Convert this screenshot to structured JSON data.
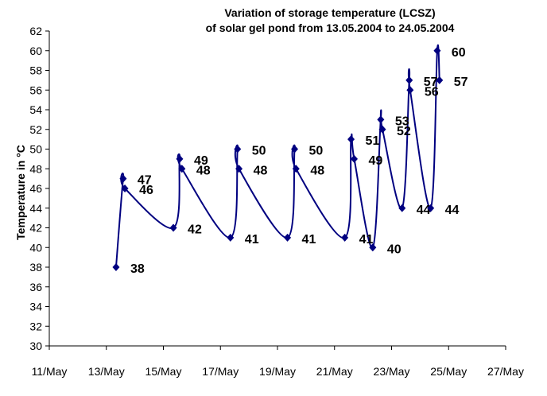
{
  "chart_data": {
    "type": "line",
    "title": [
      "Variation of storage temperature (LCSZ)",
      "of solar gel pond from 13.05.2004 to 24.05.2004"
    ],
    "xlabel": "",
    "ylabel": "Temperature in °C",
    "xlim": [
      11,
      27
    ],
    "ylim": [
      30,
      62
    ],
    "x_tick_labels": [
      "11/May",
      "13/May",
      "15/May",
      "17/May",
      "19/May",
      "21/May",
      "23/May",
      "25/May",
      "27/May"
    ],
    "x_tick_values": [
      11,
      13,
      15,
      17,
      19,
      21,
      23,
      25,
      27
    ],
    "y_ticks": [
      30,
      32,
      34,
      36,
      38,
      40,
      42,
      44,
      46,
      48,
      50,
      52,
      54,
      56,
      58,
      60,
      62
    ],
    "grid": false,
    "series": [
      {
        "name": "Storage temperature",
        "color": "#000080",
        "x_day_of_may": [
          13.34,
          13.59,
          13.65,
          15.35,
          15.57,
          15.65,
          17.35,
          17.6,
          17.65,
          19.35,
          19.6,
          19.65,
          21.36,
          21.58,
          21.69,
          22.34,
          22.62,
          22.68,
          23.37,
          23.62,
          23.65,
          24.37,
          24.6,
          24.68
        ],
        "values": [
          38,
          47,
          46,
          42,
          49,
          48,
          41,
          50,
          48,
          41,
          50,
          48,
          41,
          51,
          49,
          40,
          53,
          52,
          44,
          57,
          56,
          44,
          60,
          57
        ],
        "labels": [
          "38",
          "47",
          "46",
          "42",
          "49",
          "48",
          "41",
          "50",
          "48",
          "41",
          "50",
          "48",
          "41",
          "51",
          "49",
          "40",
          "53",
          "52",
          "44",
          "57",
          "56",
          "44",
          "60",
          "57"
        ]
      }
    ]
  }
}
